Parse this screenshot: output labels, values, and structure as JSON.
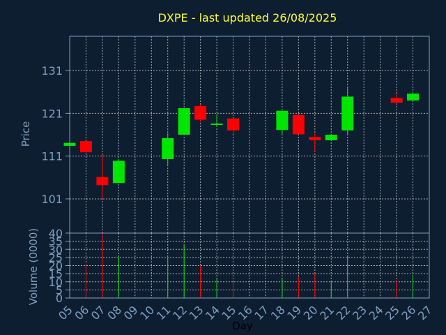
{
  "chart_data": {
    "type": "candlestick",
    "title": "DXPE - last updated 26/08/2025",
    "xlabel": "Day",
    "ylabel": "Price",
    "volume_label": "Volume (0000)",
    "x_ticks": [
      "05",
      "06",
      "07",
      "08",
      "09",
      "10",
      "11",
      "12",
      "13",
      "14",
      "15",
      "16",
      "17",
      "18",
      "19",
      "20",
      "21",
      "22",
      "23",
      "24",
      "25",
      "26",
      "27"
    ],
    "price_axis": {
      "ylim": [
        93,
        139
      ],
      "ticks": [
        101,
        111,
        121,
        131
      ]
    },
    "volume_axis": {
      "ylim": [
        0,
        40
      ],
      "ticks": [
        0,
        5,
        10,
        15,
        20,
        25,
        30,
        35,
        40
      ]
    },
    "grid": true,
    "colors": {
      "up": "#00e600",
      "down": "#ff0000",
      "title": "#ffff33",
      "axis_text": "#7fa0c0",
      "background": "#0e1e31"
    },
    "candles": [
      {
        "day": "05",
        "open": 113.4,
        "high": 114.2,
        "low": 113.4,
        "close": 114.1,
        "volume": 0
      },
      {
        "day": "06",
        "open": 114.5,
        "high": 114.5,
        "low": 111.6,
        "close": 111.9,
        "volume": 21
      },
      {
        "day": "07",
        "open": 106.1,
        "high": 111.3,
        "low": 101.0,
        "close": 104.2,
        "volume": 40
      },
      {
        "day": "08",
        "open": 104.7,
        "high": 110.3,
        "low": 104.7,
        "close": 109.9,
        "volume": 25
      },
      {
        "day": "11",
        "open": 110.3,
        "high": 116.3,
        "low": 108.9,
        "close": 115.2,
        "volume": 24
      },
      {
        "day": "12",
        "open": 116.0,
        "high": 122.2,
        "low": 116.0,
        "close": 122.2,
        "volume": 33
      },
      {
        "day": "13",
        "open": 122.7,
        "high": 123.1,
        "low": 118.9,
        "close": 119.5,
        "volume": 20
      },
      {
        "day": "14",
        "open": 118.5,
        "high": 120.8,
        "low": 118.0,
        "close": 118.6,
        "volume": 12
      },
      {
        "day": "15",
        "open": 119.8,
        "high": 119.8,
        "low": 116.2,
        "close": 117.0,
        "volume": 10
      },
      {
        "day": "18",
        "open": 117.1,
        "high": 121.6,
        "low": 116.0,
        "close": 121.6,
        "volume": 12
      },
      {
        "day": "19",
        "open": 120.6,
        "high": 120.6,
        "low": 116.1,
        "close": 116.1,
        "volume": 13
      },
      {
        "day": "20",
        "open": 115.5,
        "high": 116.3,
        "low": 112.0,
        "close": 114.7,
        "volume": 15
      },
      {
        "day": "21",
        "open": 114.7,
        "high": 116.2,
        "low": 114.7,
        "close": 116.0,
        "volume": 10
      },
      {
        "day": "22",
        "open": 117.0,
        "high": 127.0,
        "low": 116.0,
        "close": 124.9,
        "volume": 26
      },
      {
        "day": "25",
        "open": 124.6,
        "high": 125.6,
        "low": 123.5,
        "close": 123.5,
        "volume": 11
      },
      {
        "day": "26",
        "open": 124.0,
        "high": 126.0,
        "low": 124.0,
        "close": 125.6,
        "volume": 14
      }
    ]
  }
}
